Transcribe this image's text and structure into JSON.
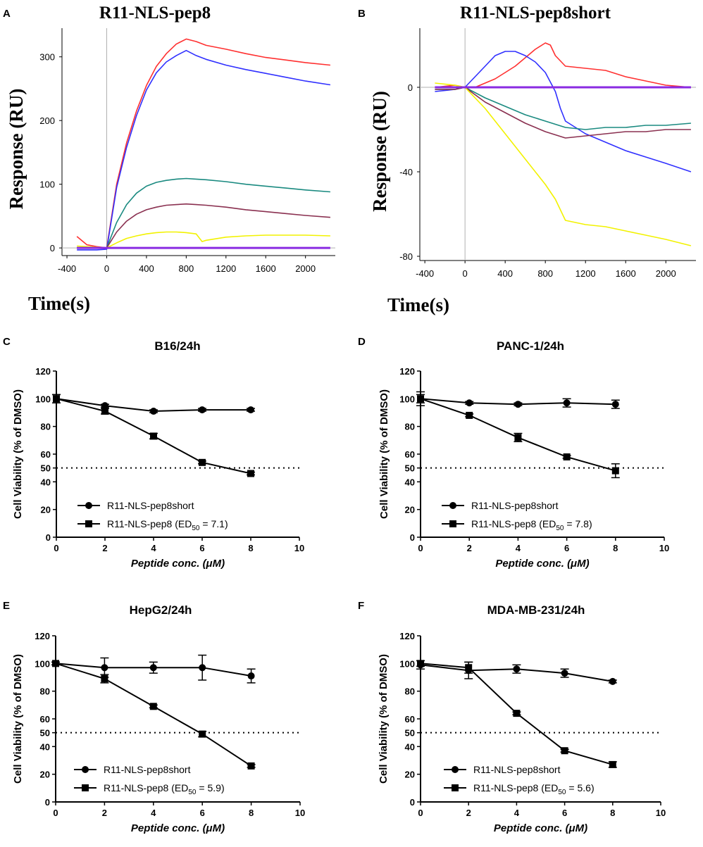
{
  "colors": {
    "red": "#ff3030",
    "blue": "#3030ff",
    "teal": "#1a8a80",
    "maroon": "#8a3050",
    "yellow": "#f2f200",
    "purple": "#8a2be2",
    "axis": "#000000",
    "zero_line": "#b0b0b0"
  },
  "chart_data": [
    {
      "panel": "A",
      "type": "line",
      "title": "R11-NLS-pep8",
      "xlabel": "Time(s)",
      "ylabel": "Response (RU)",
      "xlim": [
        -450,
        2300
      ],
      "ylim": [
        -12,
        345
      ],
      "xticks": [
        -400,
        0,
        400,
        800,
        1200,
        1600,
        2000
      ],
      "yticks": [
        0,
        100,
        200,
        300
      ],
      "series": [
        {
          "name": "red",
          "color_key": "red",
          "x": [
            -300,
            -200,
            -100,
            0,
            100,
            200,
            300,
            400,
            500,
            600,
            700,
            800,
            900,
            1000,
            1200,
            1400,
            1600,
            1800,
            2000,
            2250
          ],
          "y": [
            18,
            5,
            2,
            0,
            100,
            165,
            215,
            255,
            285,
            305,
            320,
            328,
            324,
            318,
            312,
            305,
            299,
            295,
            291,
            287
          ]
        },
        {
          "name": "blue",
          "color_key": "blue",
          "x": [
            -300,
            -200,
            -100,
            0,
            100,
            200,
            300,
            400,
            500,
            600,
            700,
            800,
            900,
            1000,
            1200,
            1400,
            1600,
            1800,
            2000,
            2250
          ],
          "y": [
            -3,
            -3,
            -3,
            -2,
            95,
            158,
            208,
            248,
            275,
            292,
            302,
            310,
            302,
            296,
            287,
            280,
            274,
            268,
            262,
            256
          ]
        },
        {
          "name": "teal",
          "color_key": "teal",
          "x": [
            -300,
            -100,
            0,
            100,
            200,
            300,
            400,
            500,
            600,
            700,
            800,
            900,
            1000,
            1200,
            1400,
            1600,
            1800,
            2000,
            2250
          ],
          "y": [
            0,
            0,
            0,
            40,
            68,
            86,
            97,
            103,
            106,
            108,
            109,
            108,
            107,
            104,
            100,
            97,
            94,
            91,
            88
          ]
        },
        {
          "name": "maroon",
          "color_key": "maroon",
          "x": [
            -300,
            -100,
            0,
            100,
            200,
            300,
            400,
            500,
            600,
            700,
            800,
            900,
            1000,
            1200,
            1400,
            1600,
            1800,
            2000,
            2250
          ],
          "y": [
            0,
            0,
            0,
            25,
            42,
            53,
            60,
            64,
            67,
            68,
            69,
            68,
            67,
            64,
            60,
            57,
            54,
            51,
            48
          ]
        },
        {
          "name": "yellow",
          "color_key": "yellow",
          "x": [
            -300,
            -100,
            0,
            100,
            200,
            300,
            400,
            500,
            600,
            700,
            800,
            900,
            960,
            1000,
            1200,
            1400,
            1600,
            1800,
            2000,
            2250
          ],
          "y": [
            3,
            1,
            0,
            8,
            15,
            19,
            22,
            24,
            25,
            25,
            24,
            22,
            10,
            12,
            17,
            19,
            20,
            20,
            20,
            19
          ]
        },
        {
          "name": "purple",
          "color_key": "purple",
          "thick": true,
          "x": [
            -300,
            2250
          ],
          "y": [
            0,
            0
          ]
        }
      ]
    },
    {
      "panel": "B",
      "type": "line",
      "title": "R11-NLS-pep8short",
      "xlabel": "Time(s)",
      "ylabel": "Response (RU)",
      "xlim": [
        -450,
        2300
      ],
      "ylim": [
        -82,
        28
      ],
      "xticks": [
        -400,
        0,
        400,
        800,
        1200,
        1600,
        2000
      ],
      "yticks": [
        0,
        -40,
        -80
      ],
      "series": [
        {
          "name": "red",
          "color_key": "red",
          "x": [
            -300,
            -100,
            0,
            100,
            200,
            300,
            400,
            500,
            600,
            700,
            800,
            850,
            900,
            1000,
            1200,
            1400,
            1600,
            1800,
            2000,
            2250
          ],
          "y": [
            0,
            1,
            0,
            0,
            2,
            4,
            7,
            10,
            14,
            18,
            21,
            20,
            15,
            10,
            9,
            8,
            5,
            3,
            1,
            0
          ]
        },
        {
          "name": "blue",
          "color_key": "blue",
          "x": [
            -300,
            -100,
            0,
            100,
            200,
            300,
            400,
            500,
            600,
            700,
            800,
            900,
            950,
            1000,
            1200,
            1400,
            1600,
            1800,
            2000,
            2250
          ],
          "y": [
            -2,
            -1,
            0,
            5,
            10,
            15,
            17,
            17,
            15,
            12,
            7,
            -2,
            -10,
            -16,
            -22,
            -26,
            -30,
            -33,
            -36,
            -40
          ]
        },
        {
          "name": "teal",
          "color_key": "teal",
          "x": [
            -300,
            -100,
            0,
            200,
            400,
            600,
            800,
            1000,
            1200,
            1400,
            1600,
            1800,
            2000,
            2250
          ],
          "y": [
            -1,
            -1,
            0,
            -5,
            -9,
            -13,
            -16,
            -19,
            -20,
            -19,
            -19,
            -18,
            -18,
            -17
          ]
        },
        {
          "name": "maroon",
          "color_key": "maroon",
          "x": [
            -300,
            -100,
            0,
            200,
            400,
            600,
            800,
            1000,
            1200,
            1400,
            1600,
            1800,
            2000,
            2250
          ],
          "y": [
            -1,
            -1,
            0,
            -7,
            -12,
            -17,
            -21,
            -24,
            -23,
            -22,
            -21,
            -21,
            -20,
            -20
          ]
        },
        {
          "name": "yellow",
          "color_key": "yellow",
          "x": [
            -300,
            -100,
            0,
            200,
            400,
            600,
            800,
            900,
            1000,
            1200,
            1400,
            1600,
            1800,
            2000,
            2250
          ],
          "y": [
            2,
            1,
            0,
            -10,
            -22,
            -34,
            -46,
            -53,
            -63,
            -65,
            -66,
            -68,
            -70,
            -72,
            -75
          ]
        },
        {
          "name": "purple",
          "color_key": "purple",
          "thick": true,
          "x": [
            -300,
            2250
          ],
          "y": [
            0,
            0
          ]
        }
      ]
    },
    {
      "panel": "C",
      "type": "line",
      "title": "B16/24h",
      "xlabel": "Peptide conc. (μM)",
      "ylabel": "Cell Viability (% of DMSO)",
      "xlim": [
        0,
        10
      ],
      "ylim": [
        0,
        120
      ],
      "xticks": [
        0,
        2,
        4,
        6,
        8,
        10
      ],
      "yticks": [
        0,
        20,
        40,
        50,
        60,
        80,
        100,
        120
      ],
      "reference_line": 50,
      "series": [
        {
          "name": "R11-NLS-pep8short",
          "marker": "circle",
          "x": [
            0,
            2,
            4,
            6,
            8
          ],
          "y": [
            100,
            95,
            91,
            92,
            92
          ],
          "err": [
            3,
            1,
            1,
            1,
            1
          ]
        },
        {
          "name": "R11-NLS-pep8",
          "ed_label": "ED",
          "ed_sub": "50",
          "ed_value": "7.1",
          "marker": "square",
          "x": [
            0,
            2,
            4,
            6,
            8
          ],
          "y": [
            100,
            91,
            73,
            54,
            46
          ],
          "err": [
            3,
            2,
            2,
            1,
            1
          ]
        }
      ]
    },
    {
      "panel": "D",
      "type": "line",
      "title": "PANC-1/24h",
      "xlabel": "Peptide conc. (μM)",
      "ylabel": "Cell Viability (% of DMSO)",
      "xlim": [
        0,
        10
      ],
      "ylim": [
        0,
        120
      ],
      "xticks": [
        0,
        2,
        4,
        6,
        8,
        10
      ],
      "yticks": [
        0,
        20,
        40,
        50,
        60,
        80,
        100,
        120
      ],
      "reference_line": 50,
      "series": [
        {
          "name": "R11-NLS-pep8short",
          "marker": "circle",
          "x": [
            0,
            2,
            4,
            6,
            8
          ],
          "y": [
            100,
            97,
            96,
            97,
            96
          ],
          "err": [
            5,
            1,
            1,
            3,
            3
          ]
        },
        {
          "name": "R11-NLS-pep8",
          "ed_label": "ED",
          "ed_sub": "50",
          "ed_value": "7.8",
          "marker": "square",
          "x": [
            0,
            2,
            4,
            6,
            8
          ],
          "y": [
            100,
            88,
            72,
            58,
            48
          ],
          "err": [
            3,
            1,
            3,
            1,
            5
          ]
        }
      ]
    },
    {
      "panel": "E",
      "type": "line",
      "title": "HepG2/24h",
      "xlabel": "Peptide conc. (μM)",
      "ylabel": "Cell Viability (% of DMSO)",
      "xlim": [
        0,
        10
      ],
      "ylim": [
        0,
        120
      ],
      "xticks": [
        0,
        2,
        4,
        6,
        8,
        10
      ],
      "yticks": [
        0,
        20,
        40,
        50,
        60,
        80,
        100,
        120
      ],
      "reference_line": 50,
      "series": [
        {
          "name": "R11-NLS-pep8short",
          "marker": "circle",
          "x": [
            0,
            2,
            4,
            6,
            8
          ],
          "y": [
            100,
            97,
            97,
            97,
            91
          ],
          "err": [
            1,
            7,
            4,
            9,
            5
          ]
        },
        {
          "name": "R11-NLS-pep8",
          "ed_label": "ED",
          "ed_sub": "50",
          "ed_value": "5.9",
          "marker": "square",
          "x": [
            0,
            2,
            4,
            6,
            8
          ],
          "y": [
            100,
            89,
            69,
            49,
            26
          ],
          "err": [
            1,
            3,
            1,
            2,
            1
          ]
        }
      ]
    },
    {
      "panel": "F",
      "type": "line",
      "title": "MDA-MB-231/24h",
      "xlabel": "Peptide conc. (μM)",
      "ylabel": "Cell Viability (% of DMSO)",
      "xlim": [
        0,
        10
      ],
      "ylim": [
        0,
        120
      ],
      "xticks": [
        0,
        2,
        4,
        6,
        8,
        10
      ],
      "yticks": [
        0,
        20,
        40,
        50,
        60,
        80,
        100,
        120
      ],
      "reference_line": 50,
      "series": [
        {
          "name": "R11-NLS-pep8short",
          "marker": "circle",
          "x": [
            0,
            2,
            4,
            6,
            8
          ],
          "y": [
            99,
            95,
            96,
            93,
            87
          ],
          "err": [
            3,
            6,
            3,
            3,
            1
          ]
        },
        {
          "name": "R11-NLS-pep8",
          "ed_label": "ED",
          "ed_sub": "50",
          "ed_value": "5.6",
          "marker": "square",
          "x": [
            0,
            2,
            4,
            6,
            8
          ],
          "y": [
            100,
            97,
            64,
            37,
            27
          ],
          "err": [
            2,
            4,
            1,
            1,
            2
          ]
        }
      ]
    }
  ]
}
